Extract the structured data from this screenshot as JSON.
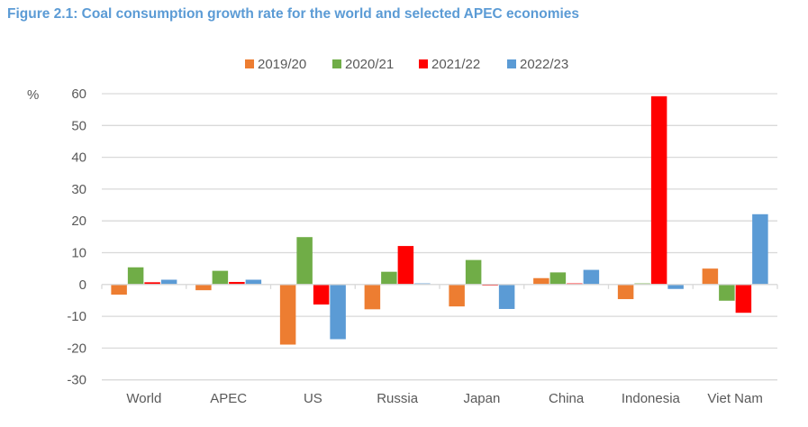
{
  "figure": {
    "title": "Figure 2.1: Coal consumption growth rate for the world and selected APEC economies"
  },
  "chart_data": {
    "type": "bar",
    "title": "Figure 2.1: Coal consumption growth rate for the world and selected APEC economies",
    "xlabel": "",
    "ylabel": "%",
    "ylim": [
      -30,
      60
    ],
    "yticks": [
      60,
      50,
      40,
      30,
      20,
      10,
      0,
      -10,
      -20,
      -30
    ],
    "grid": true,
    "legend_position": "top-center",
    "categories": [
      "World",
      "APEC",
      "US",
      "Russia",
      "Japan",
      "China",
      "Indonesia",
      "Viet Nam"
    ],
    "series": [
      {
        "name": "2019/20",
        "color": "#ED7D31",
        "values": [
          -3.2,
          -1.8,
          -18.9,
          -7.8,
          -6.9,
          2.0,
          -4.6,
          5.0
        ]
      },
      {
        "name": "2020/21",
        "color": "#70AD47",
        "values": [
          5.4,
          4.3,
          14.9,
          4.0,
          7.7,
          3.8,
          0.0,
          -5.1
        ]
      },
      {
        "name": "2021/22",
        "color": "#FF0000",
        "values": [
          0.7,
          0.8,
          -6.3,
          12.1,
          -0.3,
          0.3,
          59.2,
          -8.9
        ]
      },
      {
        "name": "2022/23",
        "color": "#5B9BD5",
        "values": [
          1.5,
          1.5,
          -17.2,
          0.0,
          -7.7,
          4.6,
          -1.4,
          22.1
        ]
      }
    ]
  }
}
